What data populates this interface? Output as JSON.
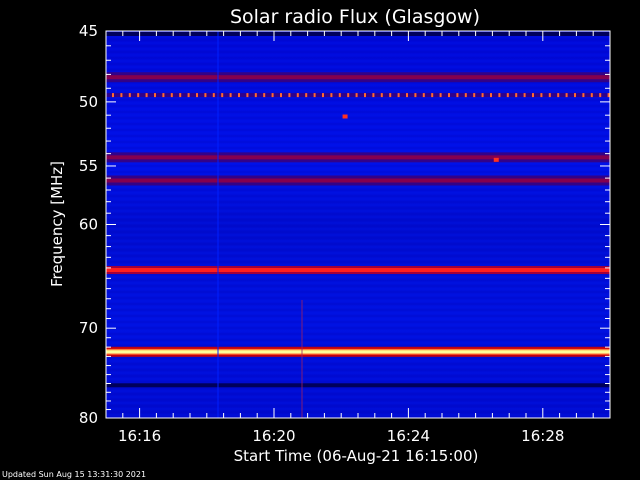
{
  "chart_data": {
    "type": "heatmap",
    "title": "Solar radio Flux (Glasgow)",
    "ylabel": "Frequency [MHz]",
    "xlabel": "Start Time (06-Aug-21 16:15:00)",
    "footer": "Updated Sun Aug 15 13:31:30 2021",
    "ylim": [
      45,
      80
    ],
    "y_inverted": true,
    "xlim_minutes": [
      0,
      15
    ],
    "y_ticks": [
      45,
      50,
      55,
      60,
      70,
      80
    ],
    "y_tick_labels": [
      "45",
      "50",
      "55",
      "60",
      "70",
      "80"
    ],
    "x_ticks_minutes": [
      1,
      5,
      9,
      13
    ],
    "x_tick_labels": [
      "16:16",
      "16:20",
      "16:24",
      "16:28"
    ],
    "colors": {
      "background": "#0000c8",
      "band_weak": "#3c0078",
      "band_mid": "#a0003c",
      "band_strong": "#ff1e1e",
      "band_hot": "#ffff64",
      "band_dark": "#00005a"
    },
    "bands_mhz": [
      {
        "f": 45.2,
        "level": "dark"
      },
      {
        "f": 48.2,
        "level": "weak"
      },
      {
        "f": 49.5,
        "level": "dotted"
      },
      {
        "f": 54.3,
        "level": "weak"
      },
      {
        "f": 56.2,
        "level": "weak"
      },
      {
        "f": 64.2,
        "level": "strong"
      },
      {
        "f": 72.5,
        "level": "hot"
      },
      {
        "f": 76.2,
        "level": "dark"
      }
    ],
    "spots": [
      {
        "minute": 7.1,
        "f": 51.1
      },
      {
        "minute": 11.6,
        "f": 54.5
      }
    ]
  }
}
